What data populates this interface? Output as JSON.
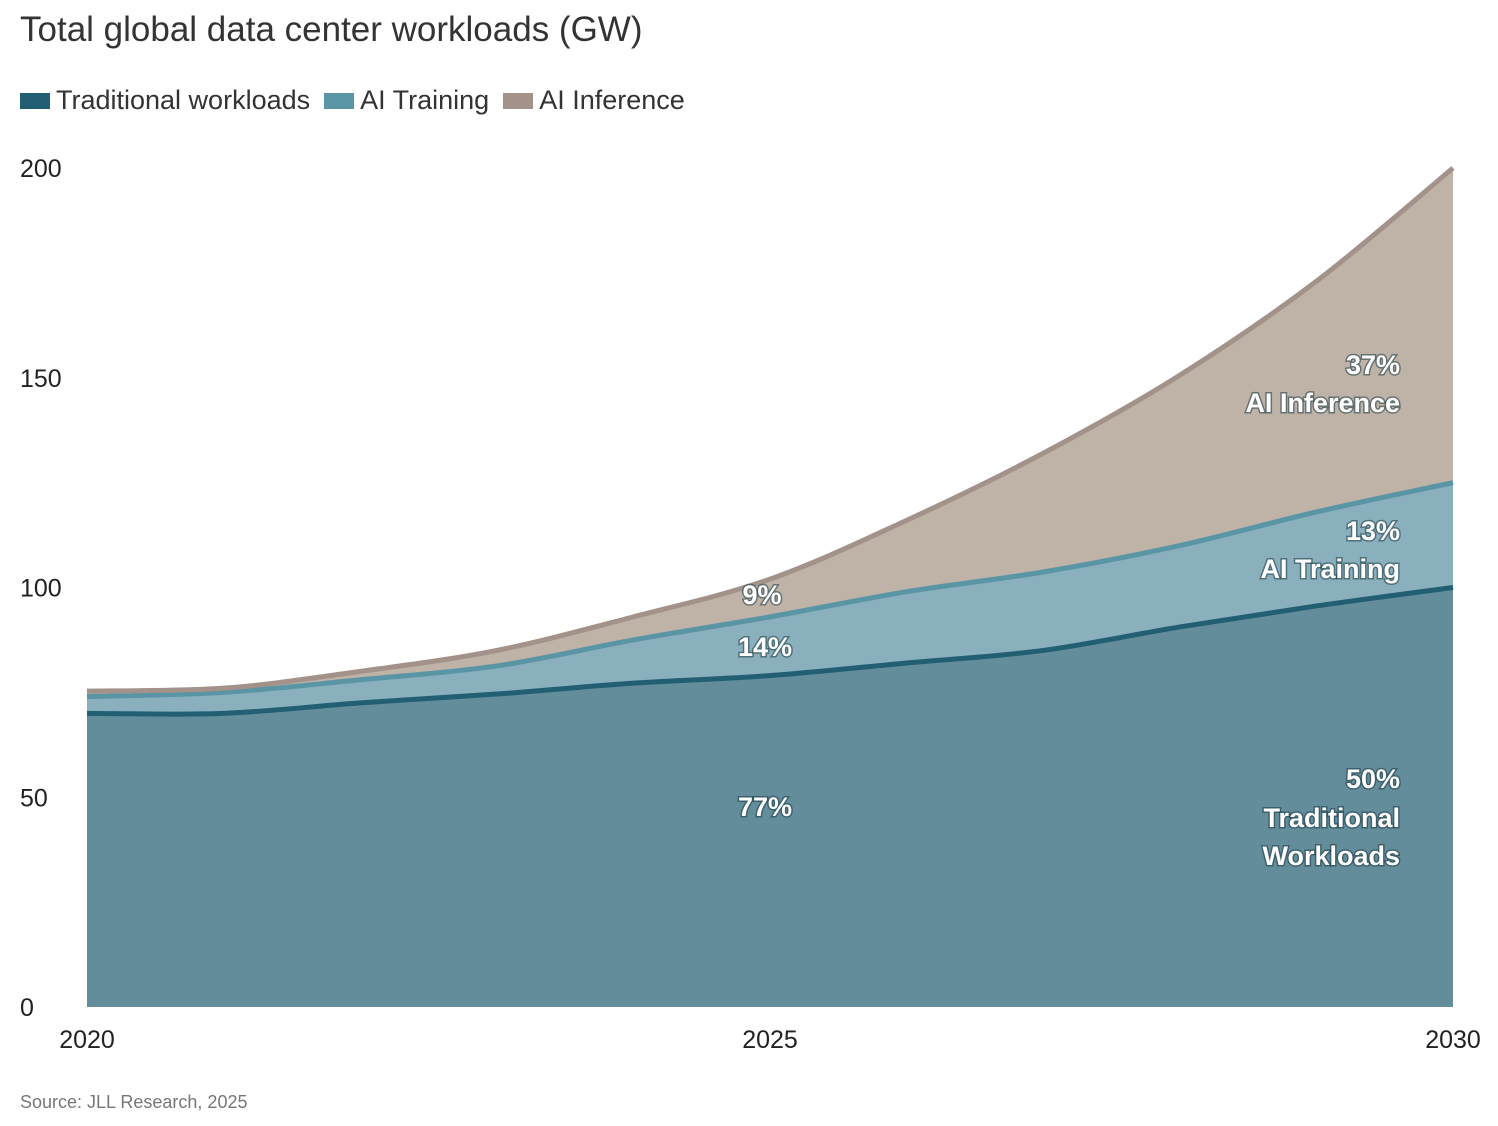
{
  "chart_data": {
    "type": "area",
    "stacked": true,
    "title": "Total global data center workloads (GW)",
    "x": [
      2020,
      2021,
      2022,
      2023,
      2024,
      2025,
      2026,
      2027,
      2028,
      2029,
      2030
    ],
    "series": [
      {
        "name": "Traditional workloads",
        "color": "#235f73",
        "fill": "#648d9c",
        "values": [
          70,
          70,
          72.5,
          74.6,
          77.2,
          79,
          82,
          85,
          90.6,
          95.6,
          100
        ]
      },
      {
        "name": "AI Training",
        "color": "#5a95a6",
        "fill": "#8aafbd",
        "values": [
          4,
          5,
          5.5,
          6.7,
          10.3,
          14,
          17,
          18.7,
          19.4,
          22.4,
          25
        ]
      },
      {
        "name": "AI Inference",
        "color": "#a39289",
        "fill": "#bfb2a6",
        "values": [
          1.3,
          1,
          2,
          3.7,
          5.5,
          9,
          17,
          28.3,
          40.6,
          55,
          75
        ]
      }
    ],
    "xticks": [
      "2020",
      "2025",
      "2030"
    ],
    "yticks": [
      "0",
      "50",
      "100",
      "150",
      "200"
    ],
    "ylim": [
      0,
      200
    ],
    "xlim": [
      2020,
      2030
    ],
    "legend": "top-left",
    "annotations": {
      "inf_2025": "9%",
      "train_2025": "14%",
      "trad_2025": "77%",
      "inf_2030_pct": "37%",
      "inf_2030_label": "AI Inference",
      "train_2030_pct": "13%",
      "train_2030_label": "AI Training",
      "trad_2030_pct": "50%",
      "trad_2030_label1": "Traditional",
      "trad_2030_label2": "Workloads"
    },
    "source": "Source: JLL Research, 2025"
  }
}
